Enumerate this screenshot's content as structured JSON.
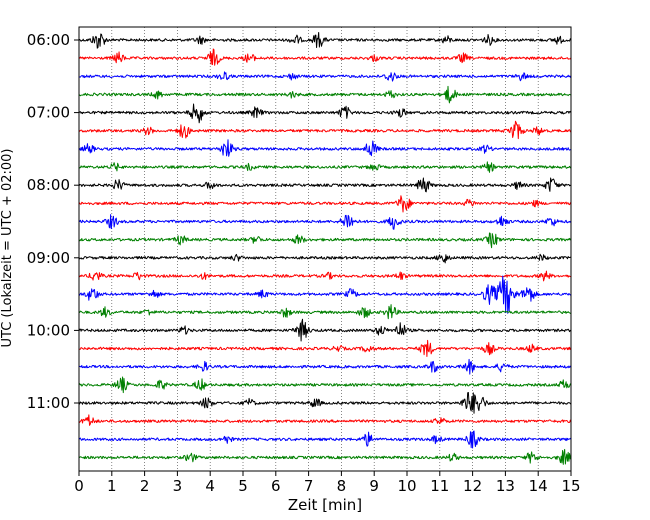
{
  "chart_data": {
    "type": "line",
    "title": "",
    "xlabel": "Zeit  [min]",
    "ylabel": "UTC (Lokalzeit = UTC + 02:00)",
    "xlim": [
      0,
      15
    ],
    "x_ticks": [
      "0",
      "1",
      "2",
      "3",
      "4",
      "5",
      "6",
      "7",
      "8",
      "9",
      "10",
      "11",
      "12",
      "13",
      "14",
      "15"
    ],
    "y_tick_labels": [
      "06:00",
      "07:00",
      "08:00",
      "09:00",
      "10:00",
      "11:00"
    ],
    "grid": "vertical dotted lines at each minute",
    "trace_interval_min": 15,
    "trace_count": 24,
    "trace_start": "06:00",
    "trace_colors": [
      "#000000",
      "#ff0000",
      "#0000ff",
      "#008000"
    ],
    "bursts": [
      {
        "trace": 0,
        "t": 0.6,
        "amp": 1.0
      },
      {
        "trace": 0,
        "t": 3.7,
        "amp": 0.4
      },
      {
        "trace": 0,
        "t": 6.6,
        "amp": 0.5
      },
      {
        "trace": 0,
        "t": 7.3,
        "amp": 0.8
      },
      {
        "trace": 0,
        "t": 11.2,
        "amp": 0.4
      },
      {
        "trace": 0,
        "t": 12.5,
        "amp": 0.5
      },
      {
        "trace": 0,
        "t": 14.6,
        "amp": 0.4
      },
      {
        "trace": 1,
        "t": 1.2,
        "amp": 0.6
      },
      {
        "trace": 1,
        "t": 4.1,
        "amp": 0.9
      },
      {
        "trace": 1,
        "t": 5.2,
        "amp": 0.5
      },
      {
        "trace": 1,
        "t": 9.0,
        "amp": 0.3
      },
      {
        "trace": 1,
        "t": 11.7,
        "amp": 0.5
      },
      {
        "trace": 2,
        "t": 4.4,
        "amp": 0.5
      },
      {
        "trace": 2,
        "t": 6.5,
        "amp": 0.3
      },
      {
        "trace": 2,
        "t": 9.5,
        "amp": 0.6
      },
      {
        "trace": 2,
        "t": 13.5,
        "amp": 0.4
      },
      {
        "trace": 3,
        "t": 2.4,
        "amp": 0.4
      },
      {
        "trace": 3,
        "t": 6.5,
        "amp": 0.3
      },
      {
        "trace": 3,
        "t": 9.5,
        "amp": 0.4
      },
      {
        "trace": 3,
        "t": 11.3,
        "amp": 0.9
      },
      {
        "trace": 4,
        "t": 3.6,
        "amp": 1.2
      },
      {
        "trace": 4,
        "t": 5.4,
        "amp": 0.6
      },
      {
        "trace": 4,
        "t": 8.1,
        "amp": 0.7
      },
      {
        "trace": 4,
        "t": 9.8,
        "amp": 0.5
      },
      {
        "trace": 5,
        "t": 2.1,
        "amp": 0.4
      },
      {
        "trace": 5,
        "t": 3.2,
        "amp": 0.8
      },
      {
        "trace": 5,
        "t": 13.3,
        "amp": 1.1
      },
      {
        "trace": 5,
        "t": 14.0,
        "amp": 0.4
      },
      {
        "trace": 6,
        "t": 0.3,
        "amp": 0.5
      },
      {
        "trace": 6,
        "t": 4.5,
        "amp": 1.0
      },
      {
        "trace": 6,
        "t": 8.9,
        "amp": 0.9
      },
      {
        "trace": 6,
        "t": 12.4,
        "amp": 0.4
      },
      {
        "trace": 7,
        "t": 1.1,
        "amp": 0.4
      },
      {
        "trace": 7,
        "t": 5.2,
        "amp": 0.3
      },
      {
        "trace": 7,
        "t": 9.0,
        "amp": 0.4
      },
      {
        "trace": 7,
        "t": 12.5,
        "amp": 0.5
      },
      {
        "trace": 8,
        "t": 1.2,
        "amp": 0.6
      },
      {
        "trace": 8,
        "t": 4.0,
        "amp": 0.4
      },
      {
        "trace": 8,
        "t": 10.5,
        "amp": 0.9
      },
      {
        "trace": 8,
        "t": 13.4,
        "amp": 0.4
      },
      {
        "trace": 8,
        "t": 14.4,
        "amp": 0.8
      },
      {
        "trace": 9,
        "t": 9.9,
        "amp": 1.0
      },
      {
        "trace": 9,
        "t": 11.9,
        "amp": 0.4
      },
      {
        "trace": 9,
        "t": 13.9,
        "amp": 0.3
      },
      {
        "trace": 10,
        "t": 1.0,
        "amp": 0.7
      },
      {
        "trace": 10,
        "t": 8.2,
        "amp": 1.0
      },
      {
        "trace": 10,
        "t": 9.6,
        "amp": 0.8
      },
      {
        "trace": 10,
        "t": 12.9,
        "amp": 0.6
      },
      {
        "trace": 10,
        "t": 14.4,
        "amp": 0.5
      },
      {
        "trace": 11,
        "t": 3.1,
        "amp": 0.5
      },
      {
        "trace": 11,
        "t": 5.4,
        "amp": 0.4
      },
      {
        "trace": 11,
        "t": 6.7,
        "amp": 0.5
      },
      {
        "trace": 11,
        "t": 12.6,
        "amp": 0.8
      },
      {
        "trace": 12,
        "t": 4.8,
        "amp": 0.3
      },
      {
        "trace": 12,
        "t": 11.1,
        "amp": 0.6
      },
      {
        "trace": 12,
        "t": 14.1,
        "amp": 0.3
      },
      {
        "trace": 13,
        "t": 0.5,
        "amp": 0.6
      },
      {
        "trace": 13,
        "t": 1.8,
        "amp": 0.4
      },
      {
        "trace": 13,
        "t": 3.8,
        "amp": 0.3
      },
      {
        "trace": 13,
        "t": 7.6,
        "amp": 0.3
      },
      {
        "trace": 13,
        "t": 9.8,
        "amp": 0.4
      },
      {
        "trace": 13,
        "t": 14.2,
        "amp": 0.5
      },
      {
        "trace": 14,
        "t": 0.4,
        "amp": 0.8
      },
      {
        "trace": 14,
        "t": 2.3,
        "amp": 0.4
      },
      {
        "trace": 14,
        "t": 5.6,
        "amp": 0.4
      },
      {
        "trace": 14,
        "t": 8.3,
        "amp": 0.5
      },
      {
        "trace": 14,
        "t": 12.5,
        "amp": 1.0
      },
      {
        "trace": 14,
        "t": 13.0,
        "amp": 2.2
      },
      {
        "trace": 14,
        "t": 13.7,
        "amp": 1.0
      },
      {
        "trace": 15,
        "t": 0.8,
        "amp": 0.5
      },
      {
        "trace": 15,
        "t": 2.1,
        "amp": 0.3
      },
      {
        "trace": 15,
        "t": 6.3,
        "amp": 0.5
      },
      {
        "trace": 15,
        "t": 8.7,
        "amp": 0.6
      },
      {
        "trace": 15,
        "t": 9.5,
        "amp": 0.8
      },
      {
        "trace": 16,
        "t": 3.2,
        "amp": 0.4
      },
      {
        "trace": 16,
        "t": 6.8,
        "amp": 1.1
      },
      {
        "trace": 16,
        "t": 9.2,
        "amp": 0.5
      },
      {
        "trace": 16,
        "t": 9.8,
        "amp": 0.8
      },
      {
        "trace": 17,
        "t": 7.9,
        "amp": 0.3
      },
      {
        "trace": 17,
        "t": 8.8,
        "amp": 0.4
      },
      {
        "trace": 17,
        "t": 10.6,
        "amp": 0.9
      },
      {
        "trace": 17,
        "t": 12.5,
        "amp": 0.6
      },
      {
        "trace": 17,
        "t": 13.8,
        "amp": 0.4
      },
      {
        "trace": 18,
        "t": 3.8,
        "amp": 0.5
      },
      {
        "trace": 18,
        "t": 10.8,
        "amp": 0.6
      },
      {
        "trace": 18,
        "t": 11.9,
        "amp": 0.7
      },
      {
        "trace": 18,
        "t": 12.9,
        "amp": 0.5
      },
      {
        "trace": 19,
        "t": 1.3,
        "amp": 0.8
      },
      {
        "trace": 19,
        "t": 2.5,
        "amp": 0.5
      },
      {
        "trace": 19,
        "t": 3.7,
        "amp": 0.6
      },
      {
        "trace": 19,
        "t": 14.8,
        "amp": 0.5
      },
      {
        "trace": 20,
        "t": 3.9,
        "amp": 0.6
      },
      {
        "trace": 20,
        "t": 5.2,
        "amp": 0.4
      },
      {
        "trace": 20,
        "t": 7.2,
        "amp": 0.5
      },
      {
        "trace": 20,
        "t": 11.9,
        "amp": 1.2
      },
      {
        "trace": 20,
        "t": 12.2,
        "amp": 1.0
      },
      {
        "trace": 21,
        "t": 0.3,
        "amp": 0.6
      },
      {
        "trace": 21,
        "t": 11.0,
        "amp": 0.4
      },
      {
        "trace": 22,
        "t": 4.5,
        "amp": 0.4
      },
      {
        "trace": 22,
        "t": 8.8,
        "amp": 0.7
      },
      {
        "trace": 22,
        "t": 10.9,
        "amp": 0.4
      },
      {
        "trace": 22,
        "t": 12.0,
        "amp": 0.9
      },
      {
        "trace": 23,
        "t": 3.4,
        "amp": 0.5
      },
      {
        "trace": 23,
        "t": 11.4,
        "amp": 0.4
      },
      {
        "trace": 23,
        "t": 13.8,
        "amp": 0.6
      },
      {
        "trace": 23,
        "t": 14.8,
        "amp": 0.8
      }
    ]
  }
}
